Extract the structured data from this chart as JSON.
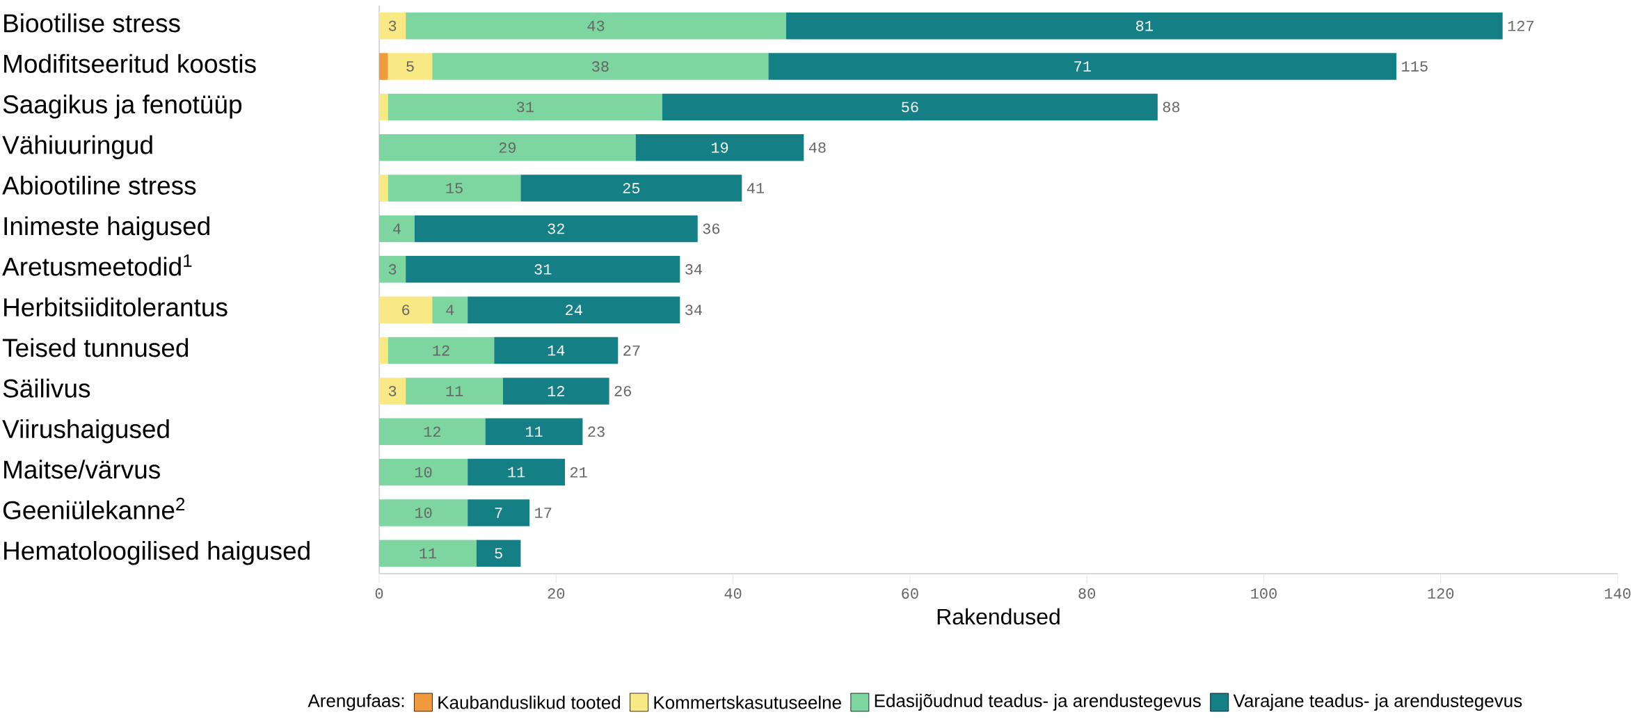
{
  "chart_data": {
    "type": "bar",
    "orientation": "horizontal",
    "stacked": true,
    "categories": [
      "Biootilise stress",
      "Modifitseeritud koostis",
      "Saagikus ja fenotüüp",
      "Vähiuuringud",
      "Abiootiline stress",
      "Inimeste haigused",
      "Aretusmeetodid$^{1}$",
      "Herbitsiiditolerantus",
      "Teised tunnused",
      "Säilivus",
      "Viirushaigused",
      "Maitse/värvus",
      "Geeniülekanne$^{2}$",
      "Hematoloogilised haigused"
    ],
    "series": [
      {
        "name": "Kaubanduslikud tooted",
        "color": "#ef9a3d",
        "values": [
          null,
          1,
          null,
          null,
          null,
          null,
          null,
          null,
          null,
          null,
          null,
          null,
          null,
          null
        ]
      },
      {
        "name": "Kommertskasutuseelne",
        "color": "#f8e985",
        "values": [
          3,
          5,
          1,
          null,
          1,
          null,
          null,
          6,
          1,
          3,
          null,
          null,
          null,
          null
        ],
        "value_labels": [
          "3",
          "5",
          null,
          null,
          null,
          null,
          null,
          "6",
          null,
          "3",
          null,
          null,
          null,
          null
        ]
      },
      {
        "name": "Edasijõudnud teadus- ja arendustegevus",
        "color": "#7dd6a0",
        "values": [
          43,
          38,
          31,
          29,
          15,
          4,
          3,
          4,
          12,
          11,
          12,
          10,
          10,
          11
        ],
        "value_labels": [
          "43",
          "38",
          "31",
          "29",
          "15",
          "4",
          "3",
          "4",
          "12",
          "11",
          "12",
          "10",
          "10",
          "11"
        ]
      },
      {
        "name": "Varajane teadus- ja arendustegevus",
        "color": "#157f86",
        "values": [
          81,
          71,
          56,
          19,
          25,
          32,
          31,
          24,
          14,
          12,
          11,
          11,
          7,
          5
        ],
        "value_labels": [
          "81",
          "71",
          "56",
          "19",
          "25",
          "32",
          "31",
          "24",
          "14",
          "12",
          "11",
          "11",
          "7",
          "5"
        ]
      }
    ],
    "totals": [
      "127",
      "115",
      "88",
      "48",
      "41",
      "36",
      "34",
      "34",
      "27",
      "26",
      "23",
      "21",
      "17",
      null
    ],
    "xlabel": "Rakendused",
    "legend_title": "Arengufaas:",
    "legend": "bottom",
    "xlim": [
      0,
      140
    ],
    "xticks": [
      0,
      20,
      40,
      60,
      80,
      100,
      120,
      140
    ]
  }
}
